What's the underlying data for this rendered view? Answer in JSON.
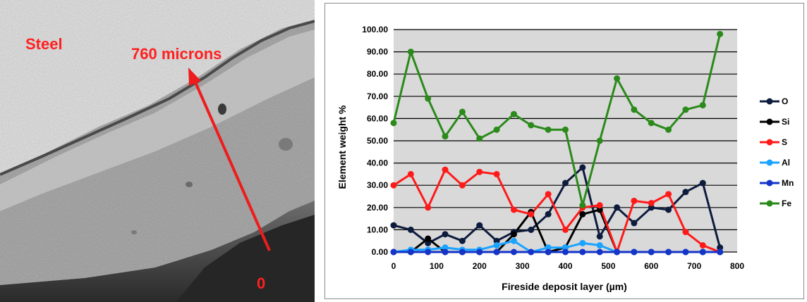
{
  "micrograph": {
    "label_steel": "Steel",
    "label_top": "760 microns",
    "label_zero": "0",
    "arrow_color": "#ee1c1c"
  },
  "chart_data": {
    "type": "line",
    "title": "",
    "xlabel": "Fireside deposit layer (µm)",
    "ylabel": "Element weight %",
    "xlim": [
      0,
      800
    ],
    "ylim": [
      0,
      100
    ],
    "x_ticks": [
      0,
      100,
      200,
      300,
      400,
      500,
      600,
      700,
      800
    ],
    "y_ticks": [
      0,
      10,
      20,
      30,
      40,
      50,
      60,
      70,
      80,
      90,
      100
    ],
    "x_tick_labels": [
      "0",
      "100",
      "200",
      "300",
      "400",
      "500",
      "600",
      "700",
      "800"
    ],
    "y_tick_labels": [
      "0.00",
      "10.00",
      "20.00",
      "30.00",
      "40.00",
      "50.00",
      "60.00",
      "70.00",
      "80.00",
      "90.00",
      "100.00"
    ],
    "grid": "horizontal",
    "plot_background": "#d9d9d9",
    "legend_position": "right",
    "series": [
      {
        "name": "O",
        "color": "#0d1b3d",
        "x": [
          0,
          40,
          80,
          120,
          160,
          200,
          240,
          280,
          320,
          360,
          400,
          440,
          480,
          520,
          560,
          600,
          640,
          680,
          720,
          760
        ],
        "y": [
          12,
          10,
          4,
          8,
          5,
          12,
          5,
          9,
          10,
          17,
          31,
          38,
          7,
          20,
          13,
          20,
          19,
          27,
          31,
          2
        ]
      },
      {
        "name": "Si",
        "color": "#000000",
        "x": [
          0,
          40,
          80,
          120,
          160,
          200,
          240,
          280,
          320,
          360,
          400,
          440,
          480,
          520,
          560,
          600,
          640,
          680,
          720,
          760
        ],
        "y": [
          0,
          0,
          6,
          0,
          0,
          0,
          0,
          8,
          18,
          0,
          2,
          17,
          19,
          0,
          0,
          0,
          0,
          0,
          0,
          0
        ]
      },
      {
        "name": "S",
        "color": "#ff1a1a",
        "x": [
          0,
          40,
          80,
          120,
          160,
          200,
          240,
          280,
          320,
          360,
          400,
          440,
          480,
          520,
          560,
          600,
          640,
          680,
          720,
          760
        ],
        "y": [
          30,
          35,
          20,
          37,
          30,
          36,
          35,
          19,
          17,
          26,
          10,
          20,
          21,
          0,
          23,
          22,
          26,
          9,
          3,
          0
        ]
      },
      {
        "name": "Al",
        "color": "#1aa3ff",
        "x": [
          0,
          40,
          80,
          120,
          160,
          200,
          240,
          280,
          320,
          360,
          400,
          440,
          480,
          520,
          560,
          600,
          640,
          680,
          720,
          760
        ],
        "y": [
          0,
          1,
          1,
          2,
          1,
          1,
          3,
          5,
          0,
          2,
          2,
          4,
          3,
          0,
          0,
          0,
          0,
          0,
          0,
          0
        ]
      },
      {
        "name": "Mn",
        "color": "#1534c8",
        "x": [
          0,
          40,
          80,
          120,
          160,
          200,
          240,
          280,
          320,
          360,
          400,
          440,
          480,
          520,
          560,
          600,
          640,
          680,
          720,
          760
        ],
        "y": [
          0,
          0,
          0,
          0,
          0,
          0,
          0,
          0,
          0,
          0,
          0,
          0,
          0,
          0,
          0,
          0,
          0,
          0,
          0,
          0
        ]
      },
      {
        "name": "Fe",
        "color": "#2a8a1a",
        "x": [
          0,
          40,
          80,
          120,
          160,
          200,
          240,
          280,
          320,
          360,
          400,
          440,
          480,
          520,
          560,
          600,
          640,
          680,
          720,
          760
        ],
        "y": [
          58,
          90,
          69,
          52,
          63,
          51,
          55,
          62,
          57,
          55,
          55,
          21,
          50,
          78,
          64,
          58,
          55,
          64,
          66,
          98
        ]
      }
    ]
  }
}
